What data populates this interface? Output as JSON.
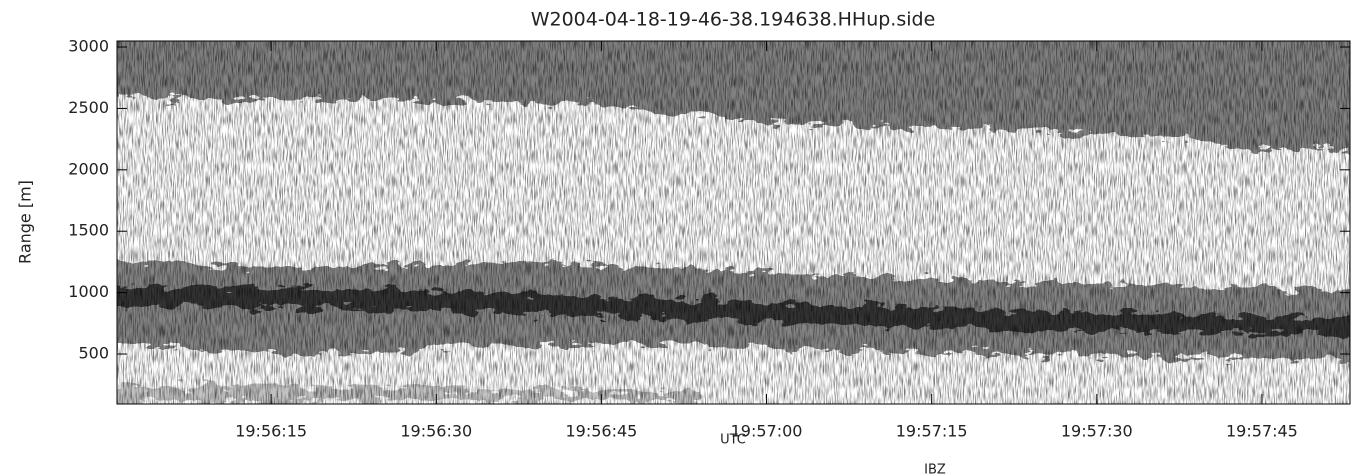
{
  "chart_data": {
    "type": "image",
    "title": "W2004-04-18-19-46-38.194638.HHup.side",
    "xlabel": "UTC",
    "ylabel": "Range [m]",
    "footer": "IBZ",
    "xlim": [
      71761,
      71873
    ],
    "xticks": [
      {
        "value": 71775,
        "label": "19:56:15"
      },
      {
        "value": 71790,
        "label": "19:56:30"
      },
      {
        "value": 71805,
        "label": "19:56:45"
      },
      {
        "value": 71820,
        "label": "19:57:00"
      },
      {
        "value": 71835,
        "label": "19:57:15"
      },
      {
        "value": 71850,
        "label": "19:57:30"
      },
      {
        "value": 71865,
        "label": "19:57:45"
      }
    ],
    "ylim": [
      93,
      3049
    ],
    "yticks": [
      500,
      1000,
      1500,
      2000,
      2500,
      3000
    ]
  }
}
